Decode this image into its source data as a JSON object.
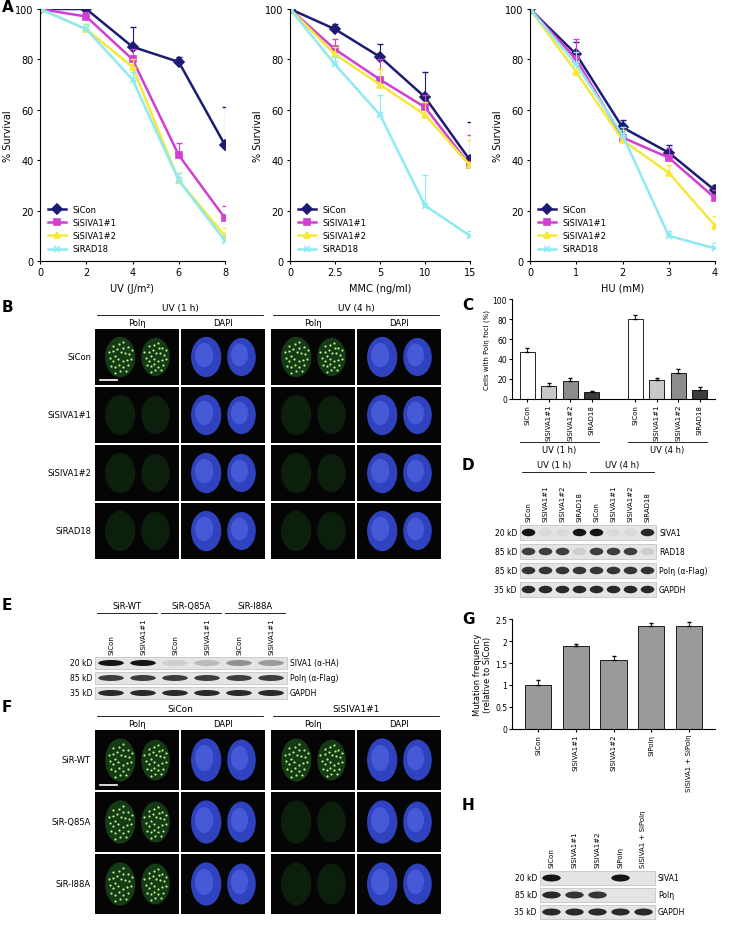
{
  "panel_letters": [
    "A",
    "B",
    "C",
    "D",
    "E",
    "F",
    "G",
    "H"
  ],
  "chart_data": [
    {
      "type": "line",
      "x_label": "UV (J/m²)",
      "y_label": "% Survival",
      "x": [
        0,
        2,
        4,
        6,
        8
      ],
      "xlim": [
        0,
        8
      ],
      "xticks": [
        0,
        2,
        4,
        6,
        8
      ],
      "ylim": [
        0,
        100
      ],
      "yticks": [
        0,
        20,
        40,
        60,
        80,
        100
      ],
      "legend": "lower left",
      "series": [
        {
          "name": "SiCon",
          "color": "#1c1c74",
          "marker": "diamond",
          "values": [
            100,
            100,
            85,
            79,
            46
          ],
          "error": [
            0,
            3,
            8,
            2,
            15
          ]
        },
        {
          "name": "SiSIVA1#1",
          "color": "#d23fd2",
          "marker": "square",
          "values": [
            100,
            97,
            80,
            42,
            17
          ],
          "error": [
            0,
            2,
            4,
            5,
            5
          ]
        },
        {
          "name": "SiSIVA1#2",
          "color": "#f5e83a",
          "marker": "triangle",
          "values": [
            100,
            92,
            77,
            32,
            10
          ],
          "error": [
            0,
            2,
            3,
            3,
            3
          ]
        },
        {
          "name": "SiRAD18",
          "color": "#8eeaf2",
          "marker": "x",
          "values": [
            100,
            92,
            72,
            32,
            8
          ],
          "error": [
            0,
            2,
            3,
            3,
            2
          ]
        }
      ]
    },
    {
      "type": "line",
      "x_label": "MMC (ng/ml)",
      "y_label": "% Survival",
      "categories": [
        "0",
        "2.5",
        "5",
        "10",
        "15"
      ],
      "ylim": [
        0,
        100
      ],
      "yticks": [
        0,
        20,
        40,
        60,
        80,
        100
      ],
      "legend": "lower left",
      "series": [
        {
          "name": "SiCon",
          "color": "#1c1c74",
          "marker": "diamond",
          "values": [
            100,
            92,
            81,
            65,
            40
          ],
          "error": [
            0,
            2,
            5,
            10,
            15
          ]
        },
        {
          "name": "SiSIVA1#1",
          "color": "#d23fd2",
          "marker": "square",
          "values": [
            100,
            84,
            72,
            61,
            38
          ],
          "error": [
            0,
            4,
            8,
            5,
            12
          ]
        },
        {
          "name": "SiSIVA1#2",
          "color": "#f5e83a",
          "marker": "triangle",
          "values": [
            100,
            82,
            70,
            58,
            38
          ],
          "error": [
            0,
            3,
            6,
            5,
            10
          ]
        },
        {
          "name": "SiRAD18",
          "color": "#8eeaf2",
          "marker": "x",
          "values": [
            100,
            78,
            58,
            22,
            10
          ],
          "error": [
            0,
            3,
            8,
            12,
            2
          ]
        }
      ]
    },
    {
      "type": "line",
      "x_label": "HU (mM)",
      "y_label": "% Survival",
      "x": [
        0,
        1,
        2,
        3,
        4
      ],
      "xlim": [
        0,
        4
      ],
      "xticks": [
        0,
        1,
        2,
        3,
        4
      ],
      "ylim": [
        0,
        100
      ],
      "yticks": [
        0,
        20,
        40,
        60,
        80,
        100
      ],
      "legend": "lower left",
      "series": [
        {
          "name": "SiCon",
          "color": "#1c1c74",
          "marker": "diamond",
          "values": [
            100,
            82,
            53,
            43,
            28
          ],
          "error": [
            0,
            5,
            3,
            3,
            2
          ]
        },
        {
          "name": "SiSIVA1#1",
          "color": "#d23fd2",
          "marker": "square",
          "values": [
            100,
            80,
            49,
            41,
            25
          ],
          "error": [
            0,
            8,
            4,
            4,
            3
          ]
        },
        {
          "name": "SiSIVA1#2",
          "color": "#f5e83a",
          "marker": "triangle",
          "values": [
            100,
            75,
            48,
            35,
            14
          ],
          "error": [
            0,
            4,
            4,
            3,
            4
          ]
        },
        {
          "name": "SiRAD18",
          "color": "#8eeaf2",
          "marker": "x",
          "values": [
            100,
            78,
            50,
            10,
            5
          ],
          "error": [
            0,
            5,
            3,
            2,
            2
          ]
        }
      ]
    },
    {
      "type": "bar",
      "y_label": "Cells with Polη foci (%)",
      "categories": [
        "SiCon",
        "SiSIVA1#1",
        "SiSIVA1#2",
        "SiRAD18",
        "SiCon",
        "SiSIVA1#1",
        "SiSIVA1#2",
        "SiRAD18"
      ],
      "groups": [
        {
          "label": "UV (1 h)",
          "count": 4
        },
        {
          "label": "UV (4 h)",
          "count": 4
        }
      ],
      "values": [
        47,
        13,
        18,
        7,
        80,
        19,
        26,
        9
      ],
      "error": [
        4,
        3,
        3,
        1,
        4,
        2,
        4,
        3
      ],
      "colors": [
        "#ffffff",
        "#c8c8c8",
        "#8c8c8c",
        "#3c3c3c",
        "#ffffff",
        "#c8c8c8",
        "#8c8c8c",
        "#3c3c3c"
      ],
      "ylim": [
        0,
        100
      ],
      "yticks": [
        0,
        20,
        40,
        60,
        80,
        100
      ]
    },
    {
      "type": "bar",
      "y_label": "Mutation frequency\n(relative to SiCon)",
      "categories": [
        "SiCon",
        "SiSIVA1#1",
        "SiSIVA1#2",
        "SiPolη",
        "SiSIVA1 + SiPolη"
      ],
      "values": [
        1.0,
        1.88,
        1.57,
        2.35,
        2.33
      ],
      "error": [
        0.12,
        0.05,
        0.08,
        0.06,
        0.1
      ],
      "color": "#9a9a9a",
      "ylim": [
        0,
        2.5
      ],
      "yticks": [
        0,
        0.5,
        1,
        1.5,
        2,
        2.5
      ]
    }
  ],
  "micrographs": [
    {
      "groups": [
        "UV (1 h)",
        "UV (4 h)"
      ],
      "channels": [
        "Polη",
        "DAPI"
      ],
      "rows": [
        "SiCon",
        "SiSIVA1#1",
        "SiSIVA1#2",
        "SiRAD18"
      ],
      "foci": [
        [
          true,
          true
        ],
        [
          false,
          false
        ],
        [
          false,
          false
        ],
        [
          false,
          false
        ]
      ]
    },
    {
      "groups": [
        "SiCon",
        "SiSIVA1#1"
      ],
      "channels": [
        "Polη",
        "DAPI"
      ],
      "rows": [
        "SiR-WT",
        "SiR-Q85A",
        "SiR-I88A"
      ],
      "foci": [
        [
          true,
          true
        ],
        [
          true,
          false
        ],
        [
          true,
          false
        ]
      ]
    }
  ],
  "blots": [
    {
      "groups": [
        {
          "label": "UV (1 h)",
          "lanes": [
            "SiCon",
            "SiSIVA1#1",
            "SiSIVA1#2",
            "SiRAD18"
          ]
        },
        {
          "label": "UV (4 h)",
          "lanes": [
            "SiCon",
            "SiSIVA1#1",
            "SiSIVA1#2",
            "SiRAD18"
          ]
        }
      ],
      "rows": [
        {
          "marker": "20 kD",
          "name": "SIVA1",
          "intensity": [
            1,
            0.05,
            0.05,
            1,
            1,
            0.05,
            0.05,
            0.9
          ]
        },
        {
          "marker": "85 kD",
          "name": "RAD18",
          "intensity": [
            0.8,
            0.8,
            0.8,
            0.1,
            0.8,
            0.8,
            0.8,
            0.1
          ]
        },
        {
          "marker": "85 kD",
          "name": "Polη (α-Flag)",
          "intensity": [
            0.85,
            0.85,
            0.85,
            0.85,
            0.85,
            0.85,
            0.85,
            0.85
          ]
        },
        {
          "marker": "35 kD",
          "name": "GAPDH",
          "intensity": [
            0.9,
            0.9,
            0.9,
            0.9,
            0.9,
            0.9,
            0.9,
            0.9
          ]
        }
      ]
    },
    {
      "groups": [
        {
          "label": "SiR-WT",
          "lanes": [
            "SiCon",
            "SiSIVA1#1"
          ]
        },
        {
          "label": "SiR-Q85A",
          "lanes": [
            "SiCon",
            "SiSIVA1#1"
          ]
        },
        {
          "label": "SiR-I88A",
          "lanes": [
            "SiCon",
            "SiSIVA1#1"
          ]
        }
      ],
      "rows": [
        {
          "marker": "20 kD",
          "name": "SIVA1 (α-HA)",
          "intensity": [
            1,
            1,
            0.1,
            0.2,
            0.4,
            0.35
          ]
        },
        {
          "marker": "85 kD",
          "name": "Polη (α-Flag)",
          "intensity": [
            0.8,
            0.8,
            0.8,
            0.8,
            0.8,
            0.8
          ]
        },
        {
          "marker": "35 kD",
          "name": "GAPDH",
          "intensity": [
            0.9,
            0.9,
            0.9,
            0.9,
            0.9,
            0.9
          ]
        }
      ]
    },
    {
      "lanes": [
        "SiCon",
        "SiSIVA1#1",
        "SiSIVA1#2",
        "SiPolη",
        "SiSIVA1 + SiPolη"
      ],
      "rows": [
        {
          "marker": "20 kD",
          "name": "SIVA1",
          "intensity": [
            1,
            0,
            0,
            1,
            0
          ]
        },
        {
          "marker": "85 kD",
          "name": "Polη",
          "intensity": [
            0.9,
            0.85,
            0.85,
            0,
            0
          ]
        },
        {
          "marker": "35 kD",
          "name": "GAPDH",
          "intensity": [
            0.9,
            0.9,
            0.9,
            0.9,
            0.9
          ]
        }
      ]
    }
  ]
}
